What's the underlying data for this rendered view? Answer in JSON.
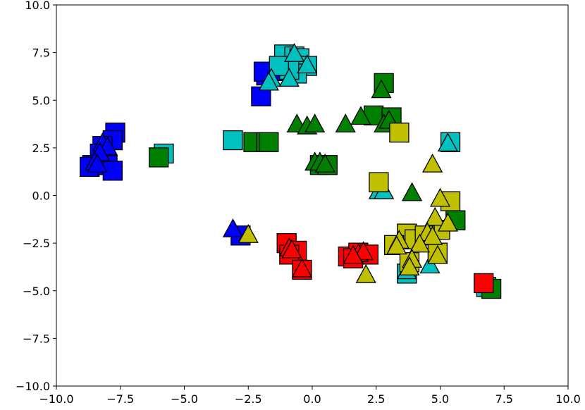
{
  "chart_data": {
    "type": "scatter",
    "title": "",
    "xlabel": "",
    "ylabel": "",
    "xlim": [
      -10,
      10
    ],
    "ylim": [
      -10,
      10
    ],
    "grid": false,
    "x_ticks": [
      {
        "value": -10,
        "label": "−10.0"
      },
      {
        "value": -7.5,
        "label": "−7.5"
      },
      {
        "value": -5,
        "label": "−5.0"
      },
      {
        "value": -2.5,
        "label": "−2.5"
      },
      {
        "value": 0,
        "label": "0.0"
      },
      {
        "value": 2.5,
        "label": "2.5"
      },
      {
        "value": 5,
        "label": "5.0"
      },
      {
        "value": 7.5,
        "label": "7.5"
      },
      {
        "value": 10,
        "label": "10.0"
      }
    ],
    "y_ticks": [
      {
        "value": 10,
        "label": "10.0"
      },
      {
        "value": 7.5,
        "label": "7.5"
      },
      {
        "value": 5,
        "label": "5.0"
      },
      {
        "value": 2.5,
        "label": "2.5"
      },
      {
        "value": 0,
        "label": "0.0"
      },
      {
        "value": -2.5,
        "label": "−2.5"
      },
      {
        "value": -5,
        "label": "−5.0"
      },
      {
        "value": -7.5,
        "label": "−7.5"
      },
      {
        "value": -10,
        "label": "−10.0"
      }
    ],
    "series": [
      {
        "color": "#0000ff",
        "marker": "square",
        "points": [
          [
            -7.7,
            3.3
          ],
          [
            -7.8,
            2.9
          ],
          [
            -8.2,
            2.6
          ],
          [
            -8.3,
            2.2
          ],
          [
            -8.6,
            1.6
          ],
          [
            -8.7,
            1.5
          ],
          [
            -8.0,
            1.6
          ],
          [
            -7.8,
            1.3
          ],
          [
            -2.0,
            5.2
          ],
          [
            -1.8,
            6.3
          ],
          [
            -1.9,
            6.5
          ],
          [
            -2.8,
            -2.1
          ]
        ]
      },
      {
        "color": "#0000ff",
        "marker": "triangle",
        "points": [
          [
            -8.2,
            2.7
          ],
          [
            -8.0,
            2.5
          ],
          [
            -8.3,
            2.2
          ],
          [
            -8.5,
            1.7
          ],
          [
            -8.4,
            1.6
          ],
          [
            -3.1,
            -1.8
          ],
          [
            -1.5,
            6.4
          ]
        ]
      },
      {
        "color": "#00c0c0",
        "marker": "square",
        "points": [
          [
            -1.1,
            7.4
          ],
          [
            -0.7,
            7.3
          ],
          [
            -0.5,
            7.2
          ],
          [
            -0.2,
            6.8
          ],
          [
            -0.6,
            6.4
          ],
          [
            -0.9,
            6.6
          ],
          [
            -1.3,
            6.8
          ],
          [
            -5.8,
            2.2
          ],
          [
            -3.1,
            2.9
          ],
          [
            5.4,
            2.8
          ],
          [
            3.7,
            -4.1
          ],
          [
            6.8,
            -4.8
          ]
        ]
      },
      {
        "color": "#00c0c0",
        "marker": "triangle",
        "points": [
          [
            -0.7,
            7.4
          ],
          [
            -0.2,
            6.8
          ],
          [
            -1.6,
            6.1
          ],
          [
            -0.9,
            6.1
          ],
          [
            -1.7,
            5.9
          ],
          [
            5.3,
            2.7
          ],
          [
            2.6,
            0.2
          ],
          [
            2.8,
            0.2
          ],
          [
            4.6,
            -3.7
          ],
          [
            3.7,
            -4.0
          ]
        ]
      },
      {
        "color": "#008000",
        "marker": "square",
        "points": [
          [
            2.8,
            5.9
          ],
          [
            2.4,
            4.2
          ],
          [
            3.1,
            4.1
          ],
          [
            -6.0,
            2.0
          ],
          [
            -2.3,
            2.8
          ],
          [
            -1.8,
            2.8
          ],
          [
            -1.7,
            2.8
          ],
          [
            0.3,
            1.6
          ],
          [
            0.6,
            1.6
          ],
          [
            5.6,
            -1.3
          ],
          [
            7.0,
            -4.9
          ]
        ]
      },
      {
        "color": "#008000",
        "marker": "triangle",
        "points": [
          [
            2.7,
            5.5
          ],
          [
            -0.6,
            3.7
          ],
          [
            -0.2,
            3.6
          ],
          [
            0.1,
            3.7
          ],
          [
            1.3,
            3.7
          ],
          [
            1.9,
            4.1
          ],
          [
            2.8,
            3.7
          ],
          [
            3.0,
            3.9
          ],
          [
            0.1,
            1.7
          ],
          [
            0.3,
            1.7
          ],
          [
            0.5,
            1.6
          ],
          [
            3.9,
            0.1
          ]
        ]
      },
      {
        "color": "#ff0000",
        "marker": "square",
        "points": [
          [
            -1.0,
            -2.5
          ],
          [
            -0.6,
            -2.9
          ],
          [
            -0.9,
            -3.1
          ],
          [
            -0.4,
            -3.9
          ],
          [
            1.4,
            -3.2
          ],
          [
            1.8,
            -3.0
          ],
          [
            2.2,
            -3.1
          ],
          [
            1.6,
            -3.3
          ],
          [
            6.7,
            -4.6
          ]
        ]
      },
      {
        "color": "#ff0000",
        "marker": "triangle",
        "points": [
          [
            -0.9,
            -2.8
          ],
          [
            -0.8,
            -2.9
          ],
          [
            -0.4,
            -3.9
          ],
          [
            1.8,
            -3.1
          ],
          [
            2.0,
            -3.0
          ],
          [
            1.6,
            -3.2
          ]
        ]
      },
      {
        "color": "#c0c000",
        "marker": "square",
        "points": [
          [
            2.6,
            0.7
          ],
          [
            3.4,
            3.3
          ],
          [
            5.4,
            -0.3
          ],
          [
            5.0,
            -1.8
          ],
          [
            3.7,
            -2.0
          ],
          [
            3.2,
            -2.6
          ],
          [
            4.0,
            -2.3
          ],
          [
            4.4,
            -2.1
          ],
          [
            4.9,
            -3.0
          ],
          [
            3.8,
            -3.5
          ]
        ]
      },
      {
        "color": "#c0c000",
        "marker": "triangle",
        "points": [
          [
            4.7,
            1.6
          ],
          [
            5.0,
            -0.2
          ],
          [
            4.8,
            -1.2
          ],
          [
            5.3,
            -1.5
          ],
          [
            4.5,
            -2.0
          ],
          [
            4.7,
            -2.2
          ],
          [
            3.4,
            -2.4
          ],
          [
            3.3,
            -2.7
          ],
          [
            4.2,
            -2.6
          ],
          [
            4.9,
            -3.2
          ],
          [
            3.9,
            -3.4
          ],
          [
            3.8,
            -3.8
          ],
          [
            2.1,
            -4.2
          ],
          [
            -2.5,
            -2.1
          ]
        ]
      }
    ]
  }
}
